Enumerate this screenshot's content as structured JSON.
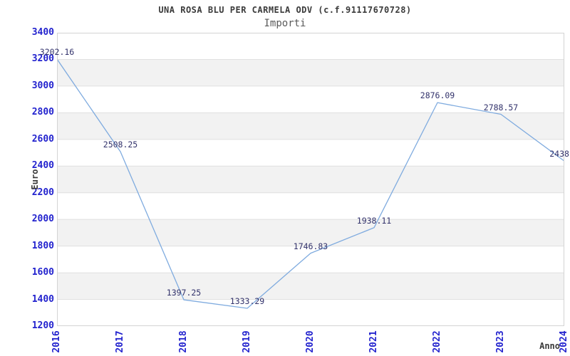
{
  "chart_data": {
    "type": "line",
    "title": "UNA ROSA BLU PER CARMELA ODV (c.f.91117670728)",
    "subtitle": "Importi",
    "xlabel": "Anno",
    "ylabel": "Euro",
    "x_ticks": [
      "2016",
      "2017",
      "2018",
      "2019",
      "2020",
      "2021",
      "2022",
      "2023",
      "2024"
    ],
    "y_ticks": [
      1200,
      1400,
      1600,
      1800,
      2000,
      2200,
      2400,
      2600,
      2800,
      3000,
      3200,
      3400
    ],
    "ylim": [
      1200,
      3400
    ],
    "series": [
      {
        "name": "Importi",
        "values": [
          3202.16,
          2508.25,
          1397.25,
          1333.29,
          1746.83,
          1938.11,
          2876.09,
          2788.57,
          2438.0
        ]
      }
    ],
    "point_labels": [
      "3202.16",
      "2508.25",
      "1397.25",
      "1333.29",
      "1746.83",
      "1938.11",
      "2876.09",
      "2788.57",
      "2438.0"
    ],
    "grid": "horizontal-alternating-bands",
    "legend": "none",
    "colors": {
      "line": "#7FABDF",
      "axis_tick_label": "#2323CE",
      "point_label": "#32326B",
      "band": "#F2F2F2",
      "gridline": "#E0E0E0",
      "plot_border": "#D4D4D4",
      "title": "#3A3A3A",
      "subtitle": "#5A5A5A",
      "axis_title": "#3A3A3A",
      "background": "#FFFFFF"
    }
  }
}
